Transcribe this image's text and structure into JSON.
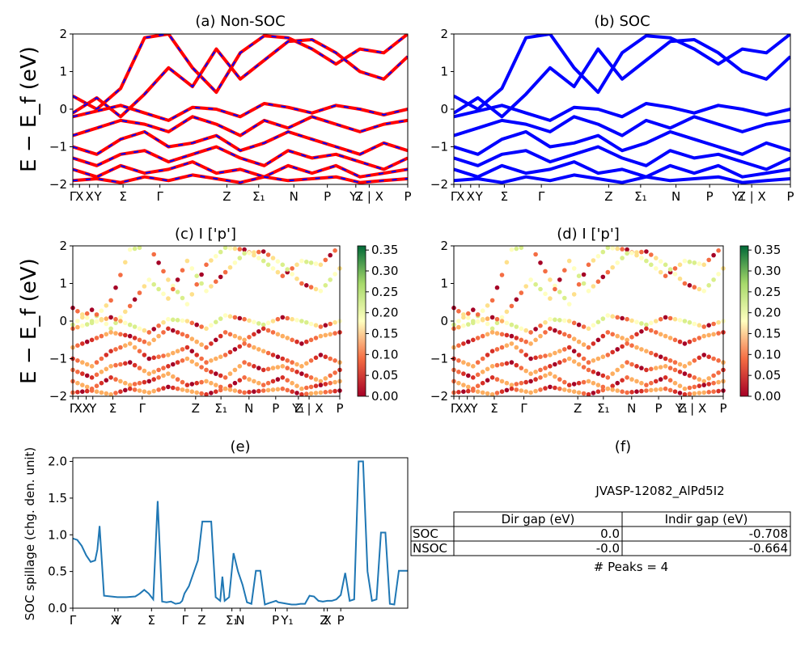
{
  "figure": {
    "colors": {
      "nonsoc_primary": "#ff0000",
      "nonsoc_secondary": "#0000ff",
      "soc": "#0000ff",
      "spillage": "#1f77b4",
      "cbar_low": "#a50026",
      "cbar_mid": "#ffffbf",
      "cbar_high": "#006837"
    }
  },
  "chart_data": [
    {
      "id": "a",
      "type": "line",
      "title": "(a) Non-SOC",
      "ylabel": "E − E_f (eV)",
      "ylim": [
        -2,
        2
      ],
      "yticks": [
        "2",
        "1",
        "0",
        "−1",
        "−2"
      ],
      "kpath_labels": [
        "Γ",
        "X",
        "X",
        "Y",
        "Σ",
        "Γ",
        "Z",
        "Σ₁",
        "N",
        "P",
        "Y₁",
        "Z | X",
        "P"
      ],
      "series": [
        {
          "values": [
            0.35,
            0.0,
            0.55,
            1.9,
            2.0,
            1.1,
            0.45,
            1.5,
            1.95,
            1.9,
            1.6,
            1.2,
            1.6,
            1.5,
            2.0
          ]
        },
        {
          "values": [
            -0.1,
            0.3,
            -0.2,
            0.4,
            1.1,
            0.6,
            1.6,
            0.8,
            1.3,
            1.8,
            1.85,
            1.5,
            1.0,
            0.8,
            1.4
          ]
        },
        {
          "values": [
            -0.2,
            -0.05,
            0.1,
            -0.1,
            -0.3,
            0.05,
            0.0,
            -0.2,
            0.15,
            0.05,
            -0.1,
            0.1,
            0.0,
            -0.15,
            0.0
          ]
        },
        {
          "values": [
            -0.7,
            -0.5,
            -0.3,
            -0.4,
            -0.6,
            -0.2,
            -0.4,
            -0.7,
            -0.3,
            -0.5,
            -0.2,
            -0.4,
            -0.6,
            -0.4,
            -0.3
          ]
        },
        {
          "values": [
            -1.0,
            -1.2,
            -0.8,
            -0.6,
            -1.0,
            -0.9,
            -0.7,
            -1.1,
            -0.9,
            -0.6,
            -0.8,
            -1.0,
            -1.2,
            -0.9,
            -1.1
          ]
        },
        {
          "values": [
            -1.3,
            -1.5,
            -1.2,
            -1.1,
            -1.4,
            -1.2,
            -1.0,
            -1.3,
            -1.5,
            -1.1,
            -1.3,
            -1.2,
            -1.4,
            -1.6,
            -1.3
          ]
        },
        {
          "values": [
            -1.6,
            -1.8,
            -1.5,
            -1.7,
            -1.6,
            -1.4,
            -1.7,
            -1.6,
            -1.8,
            -1.5,
            -1.7,
            -1.5,
            -1.8,
            -1.7,
            -1.6
          ]
        },
        {
          "values": [
            -1.9,
            -1.85,
            -1.95,
            -1.8,
            -1.9,
            -1.75,
            -1.85,
            -1.95,
            -1.8,
            -1.9,
            -1.85,
            -1.8,
            -1.95,
            -1.9,
            -1.85
          ]
        }
      ]
    },
    {
      "id": "b",
      "type": "line",
      "title": "(b) SOC",
      "ylim": [
        -2,
        2
      ],
      "yticks": [
        "2",
        "1",
        "0",
        "−1",
        "−2"
      ],
      "kpath_labels": [
        "Γ",
        "X",
        "X",
        "Y",
        "Σ",
        "Γ",
        "Z",
        "Σ₁",
        "N",
        "P",
        "Y₁",
        "Z | X",
        "P"
      ],
      "series": [
        {
          "values": [
            0.35,
            0.0,
            0.55,
            1.9,
            2.0,
            1.1,
            0.45,
            1.5,
            1.95,
            1.9,
            1.6,
            1.2,
            1.6,
            1.5,
            2.0
          ]
        },
        {
          "values": [
            -0.1,
            0.3,
            -0.2,
            0.4,
            1.1,
            0.6,
            1.6,
            0.8,
            1.3,
            1.8,
            1.85,
            1.5,
            1.0,
            0.8,
            1.4
          ]
        },
        {
          "values": [
            -0.2,
            -0.05,
            0.1,
            -0.1,
            -0.3,
            0.05,
            0.0,
            -0.2,
            0.15,
            0.05,
            -0.1,
            0.1,
            0.0,
            -0.15,
            0.0
          ]
        },
        {
          "values": [
            -0.7,
            -0.5,
            -0.3,
            -0.4,
            -0.6,
            -0.2,
            -0.4,
            -0.7,
            -0.3,
            -0.5,
            -0.2,
            -0.4,
            -0.6,
            -0.4,
            -0.3
          ]
        },
        {
          "values": [
            -1.0,
            -1.2,
            -0.8,
            -0.6,
            -1.0,
            -0.9,
            -0.7,
            -1.1,
            -0.9,
            -0.6,
            -0.8,
            -1.0,
            -1.2,
            -0.9,
            -1.1
          ]
        },
        {
          "values": [
            -1.3,
            -1.5,
            -1.2,
            -1.1,
            -1.4,
            -1.2,
            -1.0,
            -1.3,
            -1.5,
            -1.1,
            -1.3,
            -1.2,
            -1.4,
            -1.6,
            -1.3
          ]
        },
        {
          "values": [
            -1.6,
            -1.8,
            -1.5,
            -1.7,
            -1.6,
            -1.4,
            -1.7,
            -1.6,
            -1.8,
            -1.5,
            -1.7,
            -1.5,
            -1.8,
            -1.7,
            -1.6
          ]
        },
        {
          "values": [
            -1.9,
            -1.85,
            -1.95,
            -1.8,
            -1.9,
            -1.75,
            -1.85,
            -1.95,
            -1.8,
            -1.9,
            -1.85,
            -1.8,
            -1.95,
            -1.9,
            -1.85
          ]
        }
      ]
    },
    {
      "id": "c",
      "type": "scatter",
      "title": "(c)  I ['p']",
      "ylabel": "E − E_f (eV)",
      "ylim": [
        -2,
        2
      ],
      "yticks": [
        "2",
        "1",
        "0",
        "−1",
        "−2"
      ],
      "kpath_labels": [
        "Γ",
        "X",
        "X",
        "Y",
        "Σ",
        "Γ",
        "Z",
        "Σ₁",
        "N",
        "P",
        "Y₁",
        "Z | X",
        "P"
      ],
      "colorbar": {
        "range": [
          0.0,
          0.36
        ],
        "ticks": [
          "0.35",
          "0.30",
          "0.25",
          "0.20",
          "0.15",
          "0.10",
          "0.05",
          "0.00"
        ]
      }
    },
    {
      "id": "d",
      "type": "scatter",
      "title": "(d) I ['p']",
      "ylim": [
        -2,
        2
      ],
      "yticks": [
        "2",
        "1",
        "0",
        "−1",
        "−2"
      ],
      "kpath_labels": [
        "Γ",
        "X",
        "X",
        "Y",
        "Σ",
        "Γ",
        "Z",
        "Σ₁",
        "N",
        "P",
        "Y₁",
        "Z | X",
        "P"
      ],
      "colorbar": {
        "range": [
          0.0,
          0.36
        ],
        "ticks": [
          "0.35",
          "0.30",
          "0.25",
          "0.20",
          "0.15",
          "0.10",
          "0.05",
          "0.00"
        ]
      }
    },
    {
      "id": "e",
      "type": "line",
      "title": "(e)",
      "ylabel": "SOC spillage (chg. den. unit)",
      "ylim": [
        0,
        2.05
      ],
      "yticks": [
        "2.0",
        "1.5",
        "1.0",
        "0.5",
        "0.0"
      ],
      "kpath_labels": [
        "Γ",
        "X",
        "Y",
        "Σ",
        "Γ",
        "Z",
        "Σ₁",
        "N",
        "P",
        "Y₁",
        "Z",
        "X",
        "P"
      ],
      "x": [
        0,
        2,
        4,
        6,
        8,
        10,
        11,
        12,
        14,
        20,
        24,
        28,
        30,
        32,
        34,
        36,
        38,
        40,
        42,
        44,
        46,
        48,
        49,
        50,
        52,
        56,
        58,
        60,
        62,
        64,
        66,
        67,
        68,
        70,
        72,
        74,
        76,
        78,
        80,
        82,
        84,
        86,
        88,
        90,
        91,
        92,
        94,
        96,
        98,
        100,
        102,
        104,
        106,
        108,
        110,
        112,
        114,
        116,
        118,
        120,
        122,
        124,
        126,
        128,
        130,
        132,
        134,
        136,
        138,
        140,
        142,
        144,
        146,
        148,
        150
      ],
      "values": [
        0.95,
        0.93,
        0.85,
        0.72,
        0.63,
        0.65,
        0.8,
        1.12,
        0.17,
        0.15,
        0.15,
        0.16,
        0.2,
        0.25,
        0.2,
        0.12,
        1.46,
        0.09,
        0.08,
        0.09,
        0.06,
        0.07,
        0.1,
        0.2,
        0.3,
        0.65,
        1.18,
        1.18,
        1.18,
        0.15,
        0.1,
        0.43,
        0.1,
        0.15,
        0.75,
        0.5,
        0.32,
        0.08,
        0.06,
        0.51,
        0.51,
        0.05,
        0.07,
        0.09,
        0.1,
        0.08,
        0.07,
        0.06,
        0.05,
        0.05,
        0.06,
        0.06,
        0.17,
        0.16,
        0.1,
        0.09,
        0.1,
        0.1,
        0.12,
        0.18,
        0.48,
        0.1,
        0.12,
        2.0,
        2.0,
        0.5,
        0.1,
        0.12,
        1.03,
        1.03,
        0.06,
        0.05,
        0.51,
        0.51,
        0.51
      ]
    },
    {
      "id": "f",
      "type": "table",
      "title": "(f)",
      "material": "JVASP-12082_AlPd5I2",
      "columns": [
        "Dir gap (eV)",
        "Indir gap (eV)"
      ],
      "rows": [
        {
          "label": "SOC",
          "dir": "0.0",
          "indir": "-0.708"
        },
        {
          "label": "NSOC",
          "dir": "-0.0",
          "indir": "-0.664"
        }
      ],
      "note": "# Peaks = 4"
    }
  ]
}
